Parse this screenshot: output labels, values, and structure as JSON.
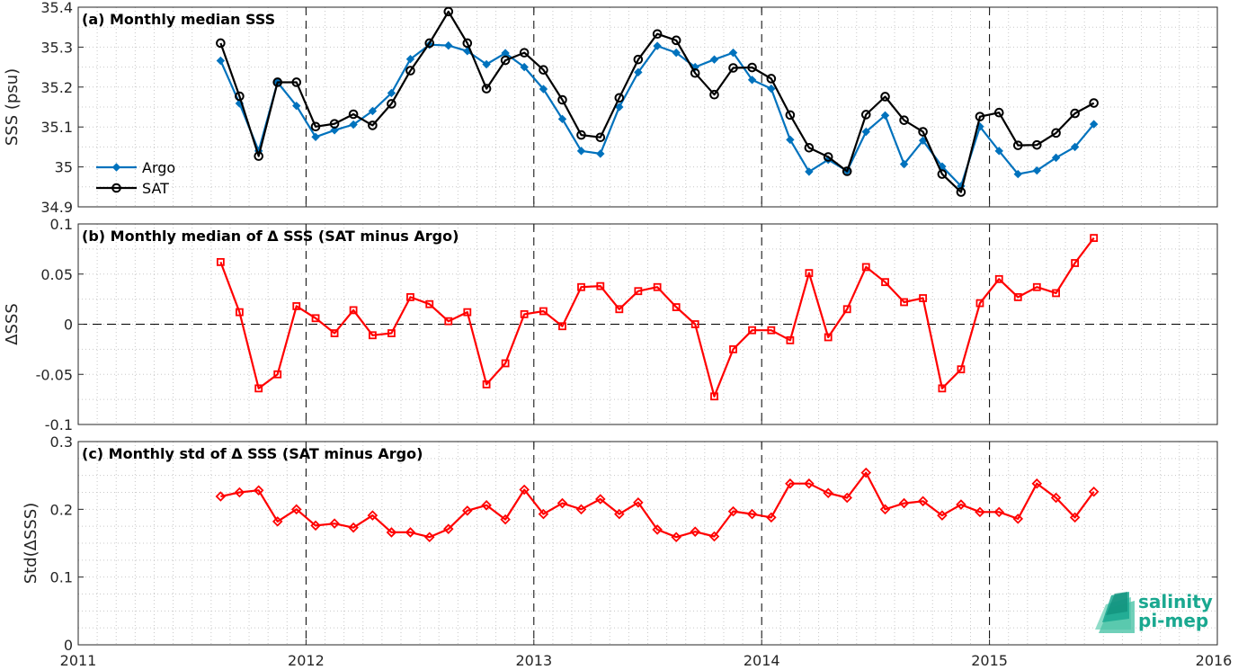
{
  "colors": {
    "argo": "#0072BD",
    "sat": "#000000",
    "diff": "#FF0000",
    "std": "#FF0000",
    "grid": "#c8c8c8",
    "axis": "#262626",
    "logo": "#1aa890"
  },
  "logo": {
    "line1": "salinity",
    "line2": "pi-mep",
    "icon": "salinity-pi-mep-logo-icon"
  },
  "x_axis": {
    "min": 2011,
    "max": 2016,
    "ticks": [
      "2011",
      "2012",
      "2013",
      "2014",
      "2015",
      "2016"
    ]
  },
  "chart_data": [
    {
      "type": "line",
      "title": "(a) Monthly median SSS",
      "ylabel": "SSS (psu)",
      "ylim": [
        34.9,
        35.4
      ],
      "yticks": [
        "34.9",
        "35",
        "35.1",
        "35.2",
        "35.3",
        "35.4"
      ],
      "legend": "left",
      "grid": true,
      "x": [
        2011.625,
        2011.708,
        2011.792,
        2011.875,
        2011.958,
        2012.042,
        2012.125,
        2012.208,
        2012.292,
        2012.375,
        2012.458,
        2012.542,
        2012.625,
        2012.708,
        2012.792,
        2012.875,
        2012.958,
        2013.042,
        2013.125,
        2013.208,
        2013.292,
        2013.375,
        2013.458,
        2013.542,
        2013.625,
        2013.708,
        2013.792,
        2013.875,
        2013.958,
        2014.042,
        2014.125,
        2014.208,
        2014.292,
        2014.375,
        2014.458,
        2014.542,
        2014.625,
        2014.708,
        2014.792,
        2014.875,
        2014.958,
        2015.042,
        2015.125,
        2015.208,
        2015.292,
        2015.375,
        2015.458
      ],
      "series": [
        {
          "name": "Argo",
          "marker": "diamond",
          "values": [
            35.266,
            35.159,
            35.04,
            35.212,
            35.153,
            35.075,
            35.092,
            35.106,
            35.14,
            35.185,
            35.27,
            35.306,
            35.304,
            35.29,
            35.257,
            35.285,
            35.25,
            35.195,
            35.12,
            35.04,
            35.033,
            35.15,
            35.237,
            35.303,
            35.286,
            35.25,
            35.269,
            35.286,
            35.218,
            35.196,
            35.068,
            34.988,
            35.018,
            34.99,
            35.088,
            35.129,
            35.007,
            35.066,
            35.001,
            34.952,
            35.101,
            35.04,
            34.982,
            34.991,
            35.023,
            35.05,
            35.107
          ]
        },
        {
          "name": "SAT",
          "marker": "circle",
          "values": [
            35.31,
            35.177,
            35.027,
            35.212,
            35.212,
            35.101,
            35.108,
            35.132,
            35.104,
            35.158,
            35.241,
            35.31,
            35.389,
            35.31,
            35.196,
            35.267,
            35.286,
            35.243,
            35.168,
            35.08,
            35.074,
            35.173,
            35.269,
            35.333,
            35.317,
            35.235,
            35.181,
            35.248,
            35.249,
            35.221,
            35.13,
            35.048,
            35.025,
            34.989,
            35.131,
            35.176,
            35.117,
            35.088,
            34.982,
            34.937,
            35.126,
            35.136,
            35.054,
            35.055,
            35.085,
            35.134,
            35.16
          ]
        }
      ]
    },
    {
      "type": "line",
      "title": "(b) Monthly median of Δ SSS (SAT minus Argo)",
      "ylabel": "ΔSSS",
      "ylim": [
        -0.1,
        0.1
      ],
      "yticks": [
        "-0.1",
        "-0.05",
        "0",
        "0.05",
        "0.1"
      ],
      "reference_line": 0,
      "grid": true,
      "x": [
        2011.625,
        2011.708,
        2011.792,
        2011.875,
        2011.958,
        2012.042,
        2012.125,
        2012.208,
        2012.292,
        2012.375,
        2012.458,
        2012.542,
        2012.625,
        2012.708,
        2012.792,
        2012.875,
        2012.958,
        2013.042,
        2013.125,
        2013.208,
        2013.292,
        2013.375,
        2013.458,
        2013.542,
        2013.625,
        2013.708,
        2013.792,
        2013.875,
        2013.958,
        2014.042,
        2014.125,
        2014.208,
        2014.292,
        2014.375,
        2014.458,
        2014.542,
        2014.625,
        2014.708,
        2014.792,
        2014.875,
        2014.958,
        2015.042,
        2015.125,
        2015.208,
        2015.292,
        2015.375,
        2015.458
      ],
      "series": [
        {
          "name": "",
          "marker": "square",
          "values": [
            0.062,
            0.012,
            -0.064,
            -0.05,
            0.018,
            0.006,
            -0.009,
            0.014,
            -0.011,
            -0.009,
            0.027,
            0.02,
            0.003,
            0.012,
            -0.06,
            -0.039,
            0.01,
            0.013,
            -0.002,
            0.037,
            0.038,
            0.015,
            0.033,
            0.037,
            0.017,
            0.0,
            -0.072,
            -0.025,
            -0.006,
            -0.006,
            -0.016,
            0.051,
            -0.013,
            0.015,
            0.057,
            0.042,
            0.022,
            0.026,
            -0.064,
            -0.045,
            0.021,
            0.045,
            0.027,
            0.037,
            0.031,
            0.061,
            0.086
          ]
        }
      ]
    },
    {
      "type": "line",
      "title": "(c) Monthly std of Δ SSS (SAT minus Argo)",
      "ylabel": "Std(ΔSSS)",
      "ylim": [
        0,
        0.3
      ],
      "yticks": [
        "0",
        "0.1",
        "0.2",
        "0.3"
      ],
      "grid": true,
      "x": [
        2011.625,
        2011.708,
        2011.792,
        2011.875,
        2011.958,
        2012.042,
        2012.125,
        2012.208,
        2012.292,
        2012.375,
        2012.458,
        2012.542,
        2012.625,
        2012.708,
        2012.792,
        2012.875,
        2012.958,
        2013.042,
        2013.125,
        2013.208,
        2013.292,
        2013.375,
        2013.458,
        2013.542,
        2013.625,
        2013.708,
        2013.792,
        2013.875,
        2013.958,
        2014.042,
        2014.125,
        2014.208,
        2014.292,
        2014.375,
        2014.458,
        2014.542,
        2014.625,
        2014.708,
        2014.792,
        2014.875,
        2014.958,
        2015.042,
        2015.125,
        2015.208,
        2015.292,
        2015.375,
        2015.458
      ],
      "series": [
        {
          "name": "",
          "marker": "diamond",
          "values": [
            0.219,
            0.225,
            0.228,
            0.182,
            0.2,
            0.176,
            0.179,
            0.173,
            0.191,
            0.166,
            0.166,
            0.159,
            0.171,
            0.198,
            0.206,
            0.185,
            0.229,
            0.193,
            0.209,
            0.2,
            0.215,
            0.193,
            0.21,
            0.17,
            0.159,
            0.167,
            0.16,
            0.197,
            0.193,
            0.188,
            0.238,
            0.238,
            0.224,
            0.217,
            0.254,
            0.2,
            0.209,
            0.212,
            0.191,
            0.207,
            0.196,
            0.196,
            0.186,
            0.238,
            0.217,
            0.188,
            0.226
          ]
        }
      ]
    }
  ]
}
